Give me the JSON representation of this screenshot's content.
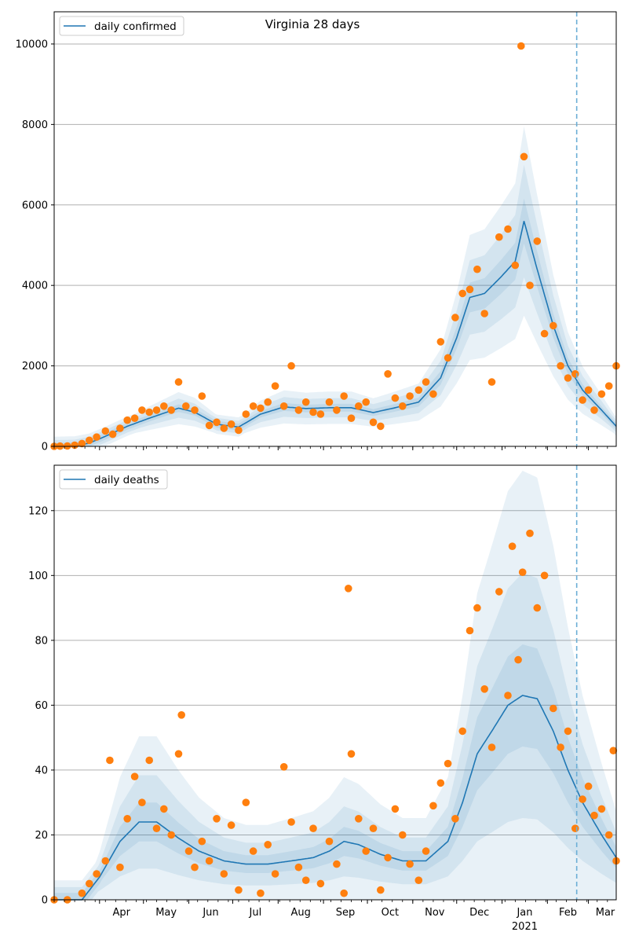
{
  "figure_title": "Virginia 28 days",
  "colors": {
    "model_line": "#1f77b4",
    "band": "#1f77b4",
    "observed": "#ff7f0e",
    "forecast_marker": "#6baed6",
    "grid": "#b0b0b0"
  },
  "x_axis": {
    "date_start": "2020-03-01",
    "date_end": "2021-03-20",
    "forecast_date": "2021-02-21",
    "month_labels": [
      {
        "date": "2020-04-01",
        "label": "Apr"
      },
      {
        "date": "2020-05-01",
        "label": "May"
      },
      {
        "date": "2020-06-01",
        "label": "Jun"
      },
      {
        "date": "2020-07-01",
        "label": "Jul"
      },
      {
        "date": "2020-08-01",
        "label": "Aug"
      },
      {
        "date": "2020-09-01",
        "label": "Sep"
      },
      {
        "date": "2020-10-01",
        "label": "Oct"
      },
      {
        "date": "2020-11-01",
        "label": "Nov"
      },
      {
        "date": "2020-12-01",
        "label": "Dec"
      },
      {
        "date": "2021-01-01",
        "label": "Jan"
      },
      {
        "date": "2021-02-01",
        "label": "Feb"
      },
      {
        "date": "2021-03-01",
        "label": "Mar"
      }
    ],
    "year_label": {
      "date": "2021-01-01",
      "label": "2021"
    }
  },
  "chart_data": [
    {
      "type": "line",
      "legend": "daily confirmed",
      "legend_position": "top-left",
      "grid": true,
      "ylim": [
        0,
        10800
      ],
      "yticks": [
        0,
        2000,
        4000,
        6000,
        8000,
        10000
      ],
      "model_keyframes": [
        [
          "2020-03-01",
          0
        ],
        [
          "2020-03-15",
          10
        ],
        [
          "2020-03-25",
          80
        ],
        [
          "2020-04-05",
          250
        ],
        [
          "2020-04-20",
          500
        ],
        [
          "2020-05-05",
          700
        ],
        [
          "2020-05-25",
          950
        ],
        [
          "2020-06-05",
          850
        ],
        [
          "2020-06-20",
          550
        ],
        [
          "2020-07-05",
          480
        ],
        [
          "2020-07-20",
          800
        ],
        [
          "2020-08-05",
          980
        ],
        [
          "2020-08-20",
          940
        ],
        [
          "2020-09-05",
          960
        ],
        [
          "2020-09-20",
          960
        ],
        [
          "2020-10-05",
          840
        ],
        [
          "2020-10-20",
          960
        ],
        [
          "2020-11-05",
          1100
        ],
        [
          "2020-11-20",
          1700
        ],
        [
          "2020-12-01",
          2700
        ],
        [
          "2020-12-10",
          3700
        ],
        [
          "2020-12-20",
          3800
        ],
        [
          "2020-12-31",
          4200
        ],
        [
          "2021-01-10",
          4600
        ],
        [
          "2021-01-16",
          5600
        ],
        [
          "2021-01-25",
          4400
        ],
        [
          "2021-02-05",
          3000
        ],
        [
          "2021-02-15",
          2000
        ],
        [
          "2021-02-25",
          1400
        ],
        [
          "2021-03-10",
          900
        ],
        [
          "2021-03-20",
          500
        ]
      ],
      "band_ratio_inner": 0.1,
      "band_ratio_mid": 0.25,
      "band_ratio_outer": 0.42,
      "band_min": 120,
      "observed_daily": [
        [
          "2020-03-01",
          0
        ],
        [
          "2020-03-05",
          5
        ],
        [
          "2020-03-10",
          10
        ],
        [
          "2020-03-15",
          30
        ],
        [
          "2020-03-20",
          70
        ],
        [
          "2020-03-25",
          150
        ],
        [
          "2020-03-30",
          230
        ],
        [
          "2020-04-05",
          380
        ],
        [
          "2020-04-10",
          300
        ],
        [
          "2020-04-15",
          450
        ],
        [
          "2020-04-20",
          650
        ],
        [
          "2020-04-25",
          700
        ],
        [
          "2020-04-30",
          900
        ],
        [
          "2020-05-05",
          850
        ],
        [
          "2020-05-10",
          900
        ],
        [
          "2020-05-15",
          1000
        ],
        [
          "2020-05-20",
          900
        ],
        [
          "2020-05-25",
          1600
        ],
        [
          "2020-05-30",
          1000
        ],
        [
          "2020-06-05",
          900
        ],
        [
          "2020-06-10",
          1250
        ],
        [
          "2020-06-15",
          520
        ],
        [
          "2020-06-20",
          600
        ],
        [
          "2020-06-25",
          450
        ],
        [
          "2020-06-30",
          550
        ],
        [
          "2020-07-05",
          400
        ],
        [
          "2020-07-10",
          800
        ],
        [
          "2020-07-15",
          1000
        ],
        [
          "2020-07-20",
          950
        ],
        [
          "2020-07-25",
          1100
        ],
        [
          "2020-07-30",
          1500
        ],
        [
          "2020-08-05",
          1000
        ],
        [
          "2020-08-10",
          2000
        ],
        [
          "2020-08-15",
          900
        ],
        [
          "2020-08-20",
          1100
        ],
        [
          "2020-08-25",
          850
        ],
        [
          "2020-08-30",
          800
        ],
        [
          "2020-09-05",
          1100
        ],
        [
          "2020-09-10",
          900
        ],
        [
          "2020-09-15",
          1250
        ],
        [
          "2020-09-20",
          700
        ],
        [
          "2020-09-25",
          1000
        ],
        [
          "2020-09-30",
          1100
        ],
        [
          "2020-10-05",
          600
        ],
        [
          "2020-10-10",
          500
        ],
        [
          "2020-10-15",
          1800
        ],
        [
          "2020-10-20",
          1200
        ],
        [
          "2020-10-25",
          1000
        ],
        [
          "2020-10-30",
          1250
        ],
        [
          "2020-11-05",
          1400
        ],
        [
          "2020-11-10",
          1600
        ],
        [
          "2020-11-15",
          1300
        ],
        [
          "2020-11-20",
          2600
        ],
        [
          "2020-11-25",
          2200
        ],
        [
          "2020-11-30",
          3200
        ],
        [
          "2020-12-05",
          3800
        ],
        [
          "2020-12-10",
          3900
        ],
        [
          "2020-12-15",
          4400
        ],
        [
          "2020-12-20",
          3300
        ],
        [
          "2020-12-25",
          1600
        ],
        [
          "2020-12-30",
          5200
        ],
        [
          "2021-01-05",
          5400
        ],
        [
          "2021-01-10",
          4500
        ],
        [
          "2021-01-14",
          9950
        ],
        [
          "2021-01-16",
          7200
        ],
        [
          "2021-01-20",
          4000
        ],
        [
          "2021-01-25",
          5100
        ],
        [
          "2021-01-30",
          2800
        ],
        [
          "2021-02-05",
          3000
        ],
        [
          "2021-02-10",
          2000
        ],
        [
          "2021-02-15",
          1700
        ],
        [
          "2021-02-20",
          1800
        ],
        [
          "2021-02-25",
          1150
        ],
        [
          "2021-03-01",
          1400
        ],
        [
          "2021-03-05",
          900
        ],
        [
          "2021-03-10",
          1300
        ],
        [
          "2021-03-15",
          1500
        ],
        [
          "2021-03-20",
          2000
        ]
      ]
    },
    {
      "type": "line",
      "legend": "daily deaths",
      "legend_position": "top-left",
      "grid": true,
      "ylim": [
        0,
        134
      ],
      "yticks": [
        0,
        20,
        40,
        60,
        80,
        100,
        120
      ],
      "model_keyframes": [
        [
          "2020-03-01",
          0
        ],
        [
          "2020-03-20",
          0
        ],
        [
          "2020-04-01",
          7
        ],
        [
          "2020-04-15",
          18
        ],
        [
          "2020-04-28",
          24
        ],
        [
          "2020-05-10",
          24
        ],
        [
          "2020-05-25",
          19
        ],
        [
          "2020-06-08",
          15
        ],
        [
          "2020-06-25",
          12
        ],
        [
          "2020-07-10",
          11
        ],
        [
          "2020-07-25",
          11
        ],
        [
          "2020-08-10",
          12
        ],
        [
          "2020-08-25",
          13
        ],
        [
          "2020-09-05",
          15
        ],
        [
          "2020-09-15",
          18
        ],
        [
          "2020-09-25",
          17
        ],
        [
          "2020-10-10",
          14
        ],
        [
          "2020-10-25",
          12
        ],
        [
          "2020-11-10",
          12
        ],
        [
          "2020-11-25",
          18
        ],
        [
          "2020-12-05",
          30
        ],
        [
          "2020-12-15",
          45
        ],
        [
          "2020-12-25",
          52
        ],
        [
          "2021-01-05",
          60
        ],
        [
          "2021-01-15",
          63
        ],
        [
          "2021-01-25",
          62
        ],
        [
          "2021-02-05",
          52
        ],
        [
          "2021-02-15",
          40
        ],
        [
          "2021-02-25",
          30
        ],
        [
          "2021-03-10",
          20
        ],
        [
          "2021-03-20",
          13
        ]
      ],
      "band_ratio_inner": 0.25,
      "band_ratio_mid": 0.6,
      "band_ratio_outer": 1.1,
      "band_min": 3,
      "observed_daily": [
        [
          "2020-03-01",
          0
        ],
        [
          "2020-03-10",
          0
        ],
        [
          "2020-03-20",
          2
        ],
        [
          "2020-03-25",
          5
        ],
        [
          "2020-03-30",
          8
        ],
        [
          "2020-04-05",
          12
        ],
        [
          "2020-04-08",
          43
        ],
        [
          "2020-04-15",
          10
        ],
        [
          "2020-04-20",
          25
        ],
        [
          "2020-04-25",
          38
        ],
        [
          "2020-04-30",
          30
        ],
        [
          "2020-05-05",
          43
        ],
        [
          "2020-05-10",
          22
        ],
        [
          "2020-05-15",
          28
        ],
        [
          "2020-05-20",
          20
        ],
        [
          "2020-05-25",
          45
        ],
        [
          "2020-05-27",
          57
        ],
        [
          "2020-06-01",
          15
        ],
        [
          "2020-06-05",
          10
        ],
        [
          "2020-06-10",
          18
        ],
        [
          "2020-06-15",
          12
        ],
        [
          "2020-06-20",
          25
        ],
        [
          "2020-06-25",
          8
        ],
        [
          "2020-06-30",
          23
        ],
        [
          "2020-07-05",
          3
        ],
        [
          "2020-07-10",
          30
        ],
        [
          "2020-07-15",
          15
        ],
        [
          "2020-07-20",
          2
        ],
        [
          "2020-07-25",
          17
        ],
        [
          "2020-07-30",
          8
        ],
        [
          "2020-08-05",
          41
        ],
        [
          "2020-08-10",
          24
        ],
        [
          "2020-08-15",
          10
        ],
        [
          "2020-08-20",
          6
        ],
        [
          "2020-08-25",
          22
        ],
        [
          "2020-08-30",
          5
        ],
        [
          "2020-09-05",
          18
        ],
        [
          "2020-09-10",
          11
        ],
        [
          "2020-09-15",
          2
        ],
        [
          "2020-09-18",
          96
        ],
        [
          "2020-09-20",
          45
        ],
        [
          "2020-09-25",
          25
        ],
        [
          "2020-09-30",
          15
        ],
        [
          "2020-10-05",
          22
        ],
        [
          "2020-10-10",
          3
        ],
        [
          "2020-10-15",
          13
        ],
        [
          "2020-10-20",
          28
        ],
        [
          "2020-10-25",
          20
        ],
        [
          "2020-10-30",
          11
        ],
        [
          "2020-11-05",
          6
        ],
        [
          "2020-11-10",
          15
        ],
        [
          "2020-11-15",
          29
        ],
        [
          "2020-11-20",
          36
        ],
        [
          "2020-11-25",
          42
        ],
        [
          "2020-11-30",
          25
        ],
        [
          "2020-12-05",
          52
        ],
        [
          "2020-12-10",
          83
        ],
        [
          "2020-12-15",
          90
        ],
        [
          "2020-12-20",
          65
        ],
        [
          "2020-12-25",
          47
        ],
        [
          "2020-12-30",
          95
        ],
        [
          "2021-01-05",
          63
        ],
        [
          "2021-01-08",
          109
        ],
        [
          "2021-01-12",
          74
        ],
        [
          "2021-01-15",
          101
        ],
        [
          "2021-01-20",
          113
        ],
        [
          "2021-01-25",
          90
        ],
        [
          "2021-01-30",
          100
        ],
        [
          "2021-02-05",
          59
        ],
        [
          "2021-02-10",
          47
        ],
        [
          "2021-02-15",
          52
        ],
        [
          "2021-02-20",
          22
        ],
        [
          "2021-02-25",
          31
        ],
        [
          "2021-03-01",
          35
        ],
        [
          "2021-03-05",
          26
        ],
        [
          "2021-03-10",
          28
        ],
        [
          "2021-03-15",
          20
        ],
        [
          "2021-03-18",
          46
        ],
        [
          "2021-03-20",
          12
        ]
      ]
    }
  ]
}
